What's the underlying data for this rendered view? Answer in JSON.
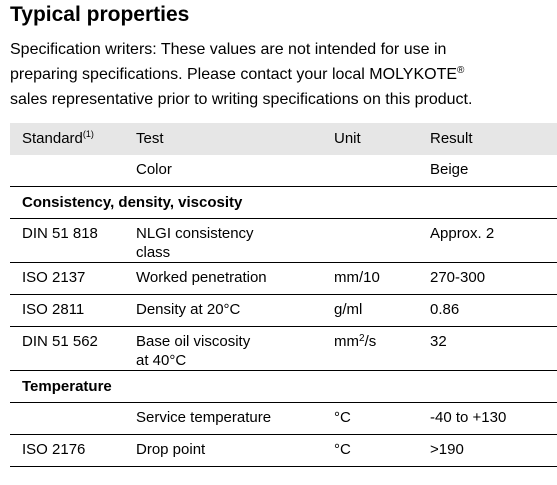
{
  "title": "Typical properties",
  "intro": {
    "line1": "Specification writers: These values are not intended for use in",
    "line2_before": "preparing specifications. Please contact your local MOLYKOTE",
    "line2_sup": "®",
    "line3": "sales representative prior to writing specifications on this product."
  },
  "table": {
    "header": {
      "standard": "Standard",
      "standard_sup": "(1)",
      "test": "Test",
      "unit": "Unit",
      "result": "Result"
    },
    "color_row": {
      "standard": "",
      "test": "Color",
      "unit": "",
      "result": "Beige"
    },
    "section_consistency": "Consistency, density, viscosity",
    "rows_consistency": [
      {
        "standard": "DIN 51 818",
        "test_line1": "NLGI consistency",
        "test_line2": "class",
        "unit": "",
        "result": "Approx. 2"
      },
      {
        "standard": "ISO 2137",
        "test": "Worked penetration",
        "unit": "mm/10",
        "result": "270-300"
      },
      {
        "standard": "ISO 2811",
        "test": "Density at 20°C",
        "unit": "g/ml",
        "result": "0.86"
      },
      {
        "standard": "DIN 51 562",
        "test_line1": "Base oil viscosity",
        "test_line2": "at 40°C",
        "unit_base": "mm",
        "unit_sup": "2",
        "unit_after": "/s",
        "result": "32"
      }
    ],
    "section_temperature": "Temperature",
    "rows_temperature": [
      {
        "standard": "",
        "test": "Service temperature",
        "unit": "°C",
        "result": "-40 to +130"
      },
      {
        "standard": "ISO 2176",
        "test": "Drop point",
        "unit": "°C",
        "result": ">190"
      }
    ]
  }
}
